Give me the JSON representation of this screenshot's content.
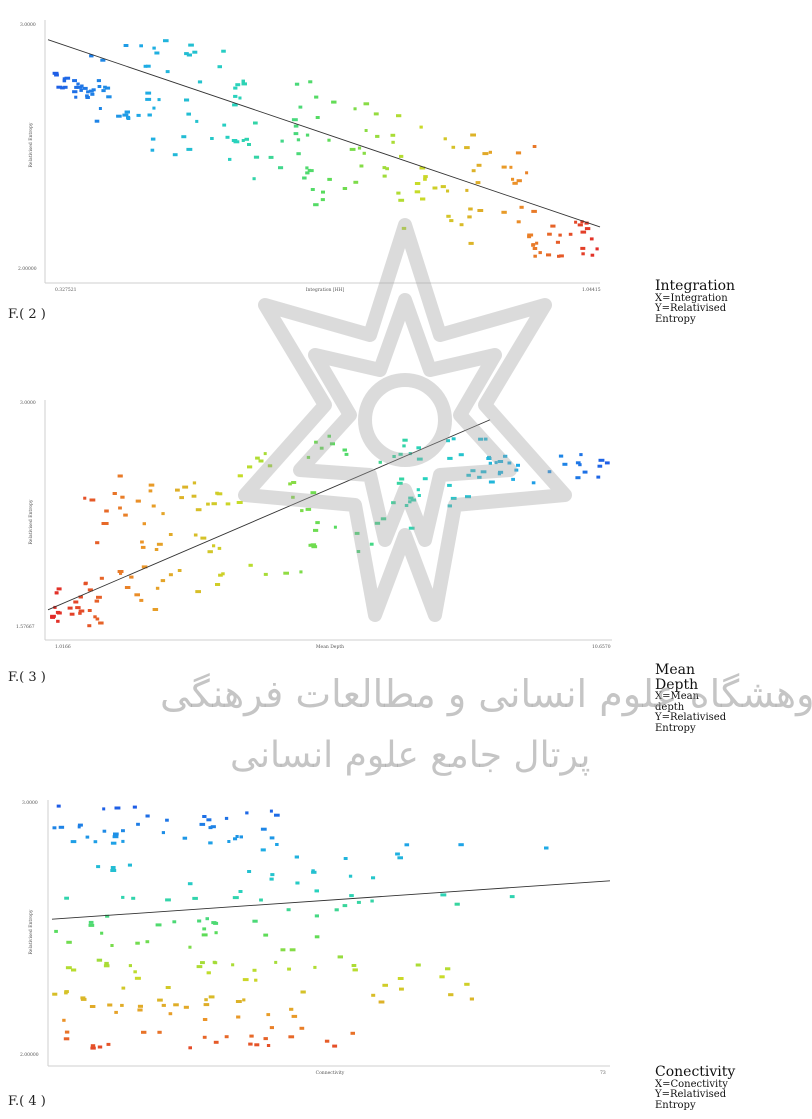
{
  "chart_data": [
    {
      "type": "scatter",
      "title": "",
      "xlabel": "Integration [HH]",
      "ylabel": "Relativised Entropy",
      "xticks": [
        "0.327521",
        "1.04415"
      ],
      "yticks": [
        "3.0000",
        "2.00000"
      ],
      "xlim": [
        0.327521,
        1.04415
      ],
      "ylim": [
        2.0,
        3.0
      ],
      "grid": false,
      "legend": {
        "title": "Integration",
        "lines": [
          "X=Integration",
          "Y=Relativised Entropy"
        ]
      },
      "figure_label": "F.( 2 )",
      "colormap": "spectral (blue to red)",
      "color_by": "x",
      "trend": "decreasing",
      "trend_line": {
        "x": [
          0.327521,
          1.04415
        ],
        "y": [
          2.95,
          2.15
        ]
      },
      "clusters": [
        {
          "x": [
            0.33,
            0.4
          ],
          "y": [
            2.7,
            2.82
          ]
        },
        {
          "x": [
            0.38,
            0.48
          ],
          "y": [
            2.6,
            2.98
          ]
        },
        {
          "x": [
            0.45,
            0.58
          ],
          "y": [
            2.45,
            2.95
          ]
        },
        {
          "x": [
            0.55,
            0.68
          ],
          "y": [
            2.35,
            2.8
          ]
        },
        {
          "x": [
            0.65,
            0.78
          ],
          "y": [
            2.25,
            2.7
          ]
        },
        {
          "x": [
            0.75,
            0.88
          ],
          "y": [
            2.15,
            2.65
          ]
        },
        {
          "x": [
            0.86,
            0.96
          ],
          "y": [
            2.08,
            2.55
          ]
        },
        {
          "x": [
            0.94,
            1.04
          ],
          "y": [
            2.02,
            2.18
          ]
        }
      ]
    },
    {
      "type": "scatter",
      "title": "",
      "xlabel": "Mean Depth",
      "ylabel": "Relativised Entropy",
      "xticks": [
        "1.0166",
        "10.6570"
      ],
      "yticks": [
        "3.0000",
        "1.57667"
      ],
      "xlim": [
        1.0166,
        10.657
      ],
      "ylim": [
        1.57667,
        3.0
      ],
      "grid": false,
      "legend": {
        "title": "Mean Depth",
        "lines": [
          "X=Mean depth",
          "Y=Relativised Entropy"
        ]
      },
      "figure_label": "F.( 3 )",
      "colormap": "spectral (red to blue)",
      "color_by": "x",
      "trend": "increasing",
      "trend_line": {
        "x": [
          1.0166,
          8.6
        ],
        "y": [
          1.72,
          2.95
        ]
      },
      "clusters": [
        {
          "x": [
            1.05,
            1.9
          ],
          "y": [
            1.62,
            1.92
          ]
        },
        {
          "x": [
            1.6,
            2.9
          ],
          "y": [
            1.7,
            2.65
          ]
        },
        {
          "x": [
            2.6,
            4.0
          ],
          "y": [
            1.8,
            2.6
          ]
        },
        {
          "x": [
            3.8,
            5.6
          ],
          "y": [
            1.95,
            2.75
          ]
        },
        {
          "x": [
            5.3,
            7.4
          ],
          "y": [
            2.1,
            2.9
          ]
        },
        {
          "x": [
            7.0,
            8.8
          ],
          "y": [
            2.35,
            2.85
          ]
        },
        {
          "x": [
            8.5,
            10.6
          ],
          "y": [
            2.55,
            2.75
          ]
        }
      ]
    },
    {
      "type": "scatter",
      "title": "",
      "xlabel": "Connectivity",
      "ylabel": "Relativised Entropy",
      "xticks": [
        "",
        "73"
      ],
      "yticks": [
        "3.0000",
        "2.00000"
      ],
      "xlim": [
        1,
        73
      ],
      "ylim": [
        2.0,
        3.0
      ],
      "grid": false,
      "legend": {
        "title": "Conectivity",
        "lines": [
          "X=Conectivity",
          "Y=Relativised Entropy"
        ]
      },
      "figure_label": "F.( 4 )",
      "colormap": "spectral (blue to red)",
      "color_by": "y",
      "trend": "slightly increasing",
      "trend_line": {
        "x": [
          1,
          73
        ],
        "y": [
          2.55,
          2.7
        ]
      },
      "clusters": [
        {
          "x": [
            1,
            30
          ],
          "y": [
            2.85,
            3.0
          ]
        },
        {
          "x": [
            1,
            65
          ],
          "y": [
            2.6,
            2.85
          ]
        },
        {
          "x": [
            1,
            40
          ],
          "y": [
            2.35,
            2.6
          ]
        },
        {
          "x": [
            1,
            55
          ],
          "y": [
            2.2,
            2.4
          ]
        },
        {
          "x": [
            1,
            40
          ],
          "y": [
            2.05,
            2.25
          ]
        }
      ]
    }
  ],
  "watermark": {
    "line1": "پژوهشگاه علوم انسانی و مطالعات فرهنگی",
    "line2": "پرتال جامع علوم انسانی"
  }
}
